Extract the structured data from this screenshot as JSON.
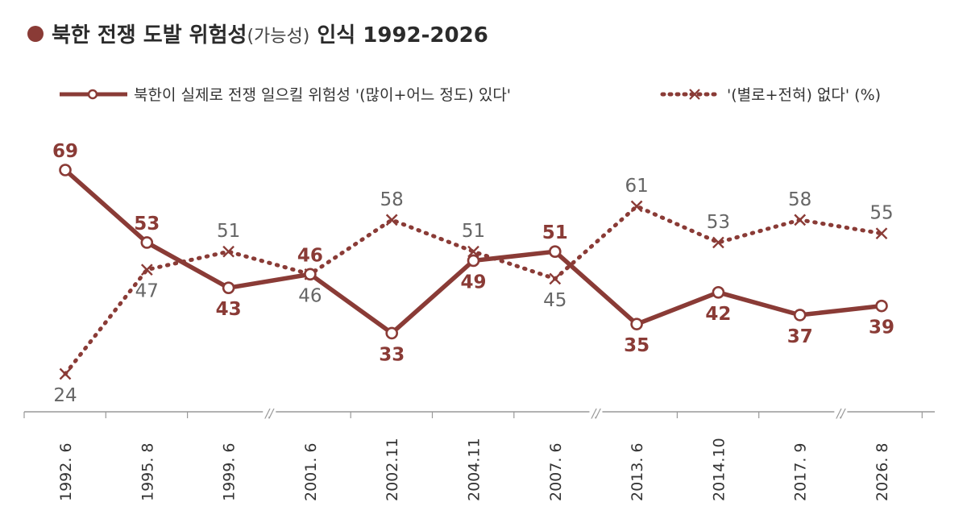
{
  "title": {
    "main": "북한 전쟁 도발 위험성",
    "paren": "(가능성)",
    "suffix": " 인식 1992-2026"
  },
  "colors": {
    "accent": "#8a3b36",
    "axis": "#999999",
    "text": "#333333"
  },
  "legend": {
    "series1": "북한이 실제로 전쟁 일으킬 위험성 '(많이+어느 정도) 있다'",
    "series2": "'(별로+전혀) 없다' (%)"
  },
  "chart_data": {
    "type": "line",
    "categories": [
      "1992. 6",
      "1995. 8",
      "1999. 6",
      "2001. 6",
      "2002.11",
      "2004.11",
      "2007. 6",
      "2013. 6",
      "2014.10",
      "2017. 9",
      "2026. 8"
    ],
    "series": [
      {
        "name": "북한이 실제로 전쟁 일으킬 위험성 '(많이+어느 정도) 있다'",
        "style": "solid",
        "marker": "circle",
        "values": [
          69,
          53,
          43,
          46,
          33,
          49,
          51,
          35,
          42,
          37,
          39
        ]
      },
      {
        "name": "'(별로+전혀) 없다' (%)",
        "style": "dotted",
        "marker": "x",
        "values": [
          24,
          47,
          51,
          46,
          58,
          51,
          45,
          61,
          53,
          58,
          55
        ]
      }
    ],
    "axis_breaks": [
      "//",
      "//",
      "//"
    ],
    "ylim": [
      15,
      75
    ],
    "grid": false,
    "legend_position": "top"
  }
}
